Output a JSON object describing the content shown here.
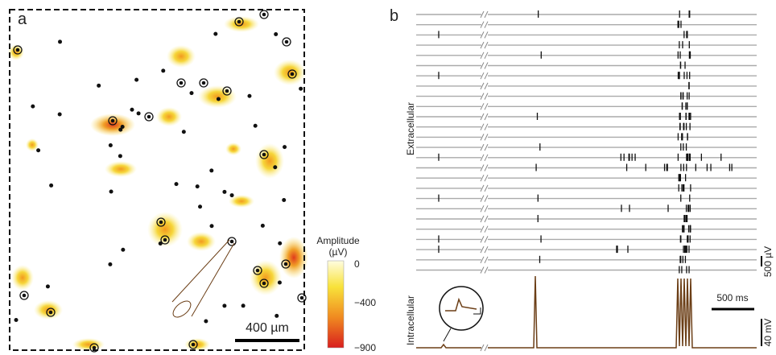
{
  "panel_a": {
    "label": "a",
    "scale_bar": "400 µm",
    "colorbar": {
      "title": "Amplitude",
      "unit": "(µV)",
      "ticks": [
        "0",
        "−400",
        "−900"
      ]
    }
  },
  "panel_b": {
    "label": "b",
    "extracellular_label": "Extracellular",
    "intracellular_label": "Intracellular",
    "scale_voltage_extra": "500 µV",
    "scale_time": "500 ms",
    "scale_voltage_intra": "40 mV"
  }
}
